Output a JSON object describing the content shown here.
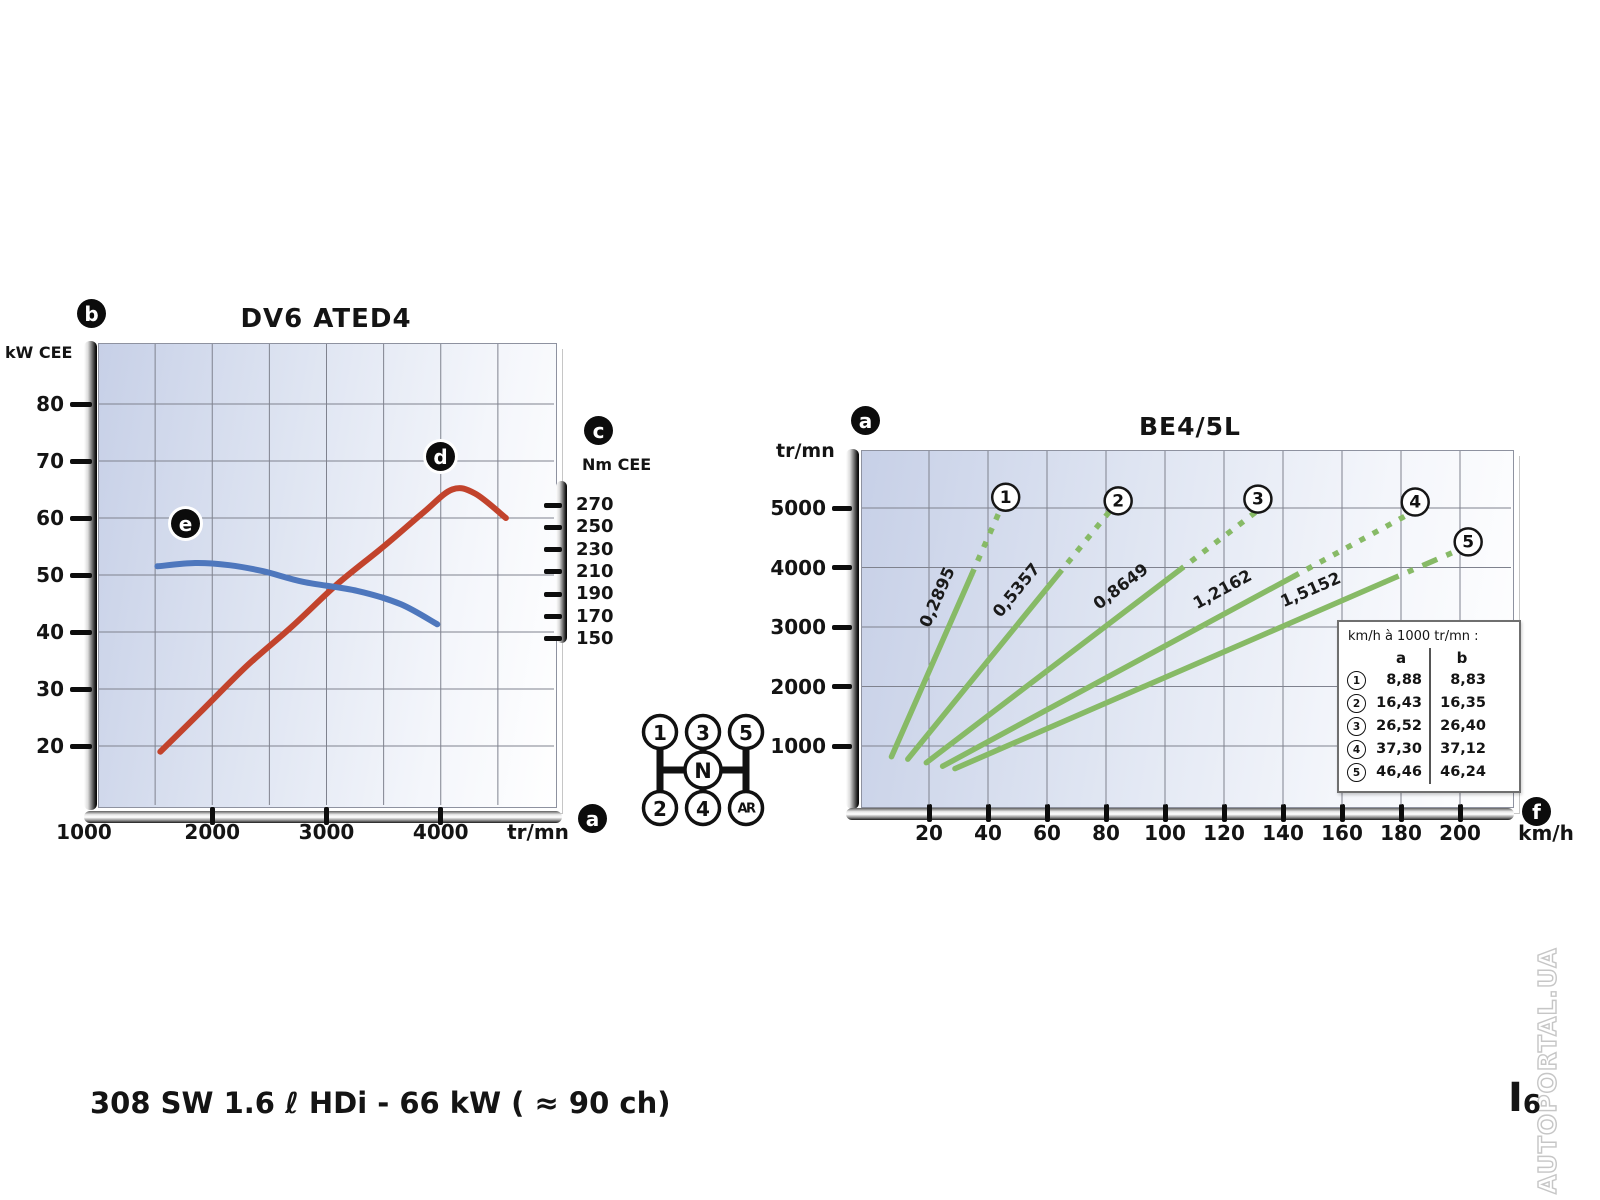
{
  "page": {
    "caption": "308 SW 1.6 ℓ HDi - 66 kW ( ≈ 90 ch)",
    "page_number_prefix": "I",
    "page_number_digit": "6",
    "watermark": "AUTOPORTAL.UA",
    "colors": {
      "power_curve": "#c2432c",
      "torque_curve": "#4e77bd",
      "gear_lines": "#87ba66",
      "grid": "#7f828e",
      "plot_bg_start": "#c7d0e7",
      "plot_bg_end": "#ffffff",
      "marker_bg": "#0c0c0c"
    }
  },
  "markers": {
    "a_left": "a",
    "b": "b",
    "c": "c",
    "d": "d",
    "e": "e",
    "a_right": "a",
    "f": "f"
  },
  "engine_chart": {
    "title": "DV6 ATED4",
    "power_axis_label": "kW CEE",
    "power_ticks": [
      "80",
      "70",
      "60",
      "50",
      "40",
      "30",
      "20"
    ],
    "torque_axis_label": "Nm CEE",
    "torque_ticks": [
      "270",
      "250",
      "230",
      "210",
      "190",
      "170",
      "150"
    ],
    "rpm_ticks": [
      "1000",
      "2000",
      "3000",
      "4000"
    ],
    "rpm_unit": "tr/mn"
  },
  "gear_shift_diagram": {
    "top_row": [
      "1",
      "3",
      "5"
    ],
    "middle": "N",
    "bottom_row": [
      "2",
      "4",
      "AR"
    ]
  },
  "gearbox_chart": {
    "title": "BE4/5L",
    "y_axis_label": "tr/mn",
    "y_ticks": [
      "5000",
      "4000",
      "3000",
      "2000",
      "1000"
    ],
    "x_ticks": [
      "20",
      "40",
      "60",
      "80",
      "100",
      "120",
      "140",
      "160",
      "180",
      "200"
    ],
    "x_unit": "km/h",
    "table": {
      "header": "km/h à 1000 tr/mn :",
      "columns": [
        "a",
        "b"
      ],
      "rows": [
        {
          "gear": "1",
          "a": "8,88",
          "b": "8,83"
        },
        {
          "gear": "2",
          "a": "16,43",
          "b": "16,35"
        },
        {
          "gear": "3",
          "a": "26,52",
          "b": "26,40"
        },
        {
          "gear": "4",
          "a": "37,30",
          "b": "37,12"
        },
        {
          "gear": "5",
          "a": "46,46",
          "b": "46,24"
        }
      ]
    }
  },
  "chart_data": [
    {
      "type": "line",
      "title": "DV6 ATED4",
      "xlabel": "tr/mn",
      "x_range": [
        1000,
        5000
      ],
      "grid_x_step": 500,
      "left_axis": {
        "label": "kW CEE",
        "ticks": [
          20,
          30,
          40,
          50,
          60,
          70,
          80
        ],
        "grid_step": 10
      },
      "right_axis": {
        "label": "Nm CEE",
        "ticks": [
          150,
          170,
          190,
          210,
          230,
          250,
          270
        ]
      },
      "series": [
        {
          "name": "power_kW",
          "marker": "d",
          "axis": "left",
          "color": "#c2432c",
          "x": [
            1545,
            1900,
            2300,
            2700,
            3100,
            3500,
            3850,
            4100,
            4300,
            4570
          ],
          "y": [
            19,
            26,
            34,
            41,
            48.5,
            55,
            61,
            65,
            64.3,
            60
          ]
        },
        {
          "name": "torque_Nm",
          "marker": "e",
          "axis": "right",
          "color": "#4e77bd",
          "x": [
            1520,
            1850,
            2150,
            2450,
            2800,
            3270,
            3650,
            3970
          ],
          "y": [
            215,
            218,
            216,
            210.5,
            201,
            193,
            181,
            163
          ]
        }
      ]
    },
    {
      "type": "line",
      "title": "BE4/5L",
      "xlabel": "km/h",
      "ylabel": "tr/mn",
      "x_range": [
        0,
        218
      ],
      "y_range": [
        0,
        5950
      ],
      "grid_x_step": 20,
      "grid_y_step": 1000,
      "series": [
        {
          "name": "gear_1",
          "gear": "1",
          "ratio_label": "0,2895",
          "kmh_per_1000rpm": 8.88,
          "rpm_start": 820,
          "rpm_solid_end": 3880,
          "rpm_end": 5050,
          "circle_rpm": 5180,
          "circle_dx": 0,
          "label_rpm": 3350
        },
        {
          "name": "gear_2",
          "gear": "2",
          "ratio_label": "0,5357",
          "kmh_per_1000rpm": 16.43,
          "rpm_start": 780,
          "rpm_solid_end": 3880,
          "rpm_end": 4980,
          "circle_rpm": 5120,
          "circle_dx": 0,
          "label_rpm": 3380
        },
        {
          "name": "gear_3",
          "gear": "3",
          "ratio_label": "0,8649",
          "kmh_per_1000rpm": 26.52,
          "rpm_start": 720,
          "rpm_solid_end": 3950,
          "rpm_end": 5000,
          "circle_rpm": 5150,
          "circle_dx": -15,
          "label_rpm": 3380
        },
        {
          "name": "gear_4",
          "gear": "4",
          "ratio_label": "1,2162",
          "kmh_per_1000rpm": 37.3,
          "rpm_start": 660,
          "rpm_solid_end": 3850,
          "rpm_end": 4950,
          "circle_rpm": 5100,
          "circle_dx": -16,
          "label_rpm": 3300
        },
        {
          "name": "gear_5",
          "gear": "5",
          "ratio_label": "1,5152",
          "kmh_per_1000rpm": 46.46,
          "rpm_start": 620,
          "rpm_solid_end": 3750,
          "rpm_end": 4300,
          "circle_rpm": 4430,
          "circle_dx": -9,
          "label_rpm": 3280
        }
      ],
      "kmh_at_1000rpm": {
        "a": [
          8.88,
          16.43,
          26.52,
          37.3,
          46.46
        ],
        "b": [
          8.83,
          16.35,
          26.4,
          37.12,
          46.24
        ]
      }
    }
  ]
}
